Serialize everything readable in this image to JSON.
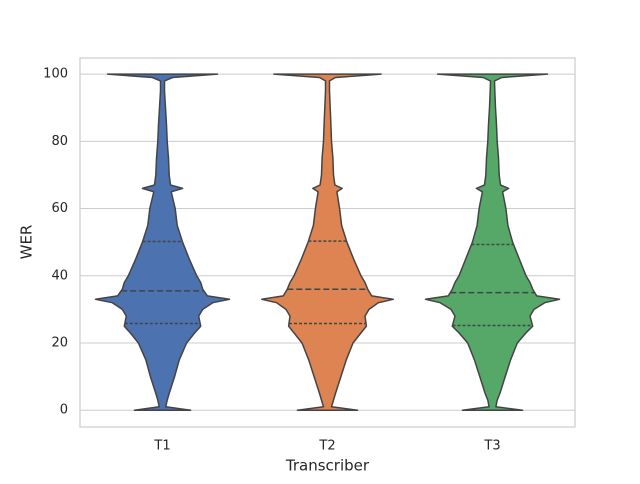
{
  "chart_data": {
    "type": "violin",
    "x_label": "Transcriber",
    "y_label": "WER",
    "categories": [
      "T1",
      "T2",
      "T3"
    ],
    "ylim": [
      -5,
      104.8
    ],
    "yticks": [
      0,
      20,
      40,
      60,
      80,
      100
    ],
    "grid": true,
    "density_y": [
      0,
      1,
      3,
      5,
      10,
      15,
      20,
      23,
      25,
      28,
      30,
      32,
      33,
      34,
      36,
      38,
      40,
      45,
      50,
      55,
      60,
      65,
      66,
      67,
      70,
      75,
      80,
      85,
      90,
      95,
      98,
      99,
      100
    ],
    "series": [
      {
        "name": "T1",
        "color": "#4c72b0",
        "quartiles": [
          25.8,
          35.5,
          50.2
        ],
        "density": [
          0.42,
          0.05,
          0.07,
          0.1,
          0.18,
          0.25,
          0.36,
          0.48,
          0.57,
          0.54,
          0.6,
          0.75,
          1,
          0.67,
          0.6,
          0.57,
          0.51,
          0.4,
          0.3,
          0.22,
          0.19,
          0.13,
          0.3,
          0.12,
          0.1,
          0.09,
          0.07,
          0.06,
          0.045,
          0.03,
          0.03,
          0.15,
          0.82
        ]
      },
      {
        "name": "T2",
        "color": "#dd8452",
        "quartiles": [
          25.8,
          36,
          50.3
        ],
        "density": [
          0.45,
          0.06,
          0.09,
          0.12,
          0.2,
          0.28,
          0.38,
          0.5,
          0.58,
          0.56,
          0.62,
          0.76,
          0.98,
          0.66,
          0.6,
          0.56,
          0.5,
          0.39,
          0.29,
          0.21,
          0.18,
          0.14,
          0.22,
          0.11,
          0.09,
          0.08,
          0.06,
          0.05,
          0.04,
          0.03,
          0.03,
          0.12,
          0.8
        ]
      },
      {
        "name": "T3",
        "color": "#55a868",
        "quartiles": [
          25.2,
          35,
          49.3
        ],
        "density": [
          0.45,
          0.05,
          0.07,
          0.11,
          0.19,
          0.27,
          0.37,
          0.5,
          0.6,
          0.56,
          0.62,
          0.78,
          1,
          0.66,
          0.6,
          0.56,
          0.5,
          0.4,
          0.3,
          0.23,
          0.2,
          0.15,
          0.24,
          0.12,
          0.1,
          0.09,
          0.07,
          0.06,
          0.045,
          0.035,
          0.03,
          0.14,
          0.82
        ]
      }
    ]
  }
}
